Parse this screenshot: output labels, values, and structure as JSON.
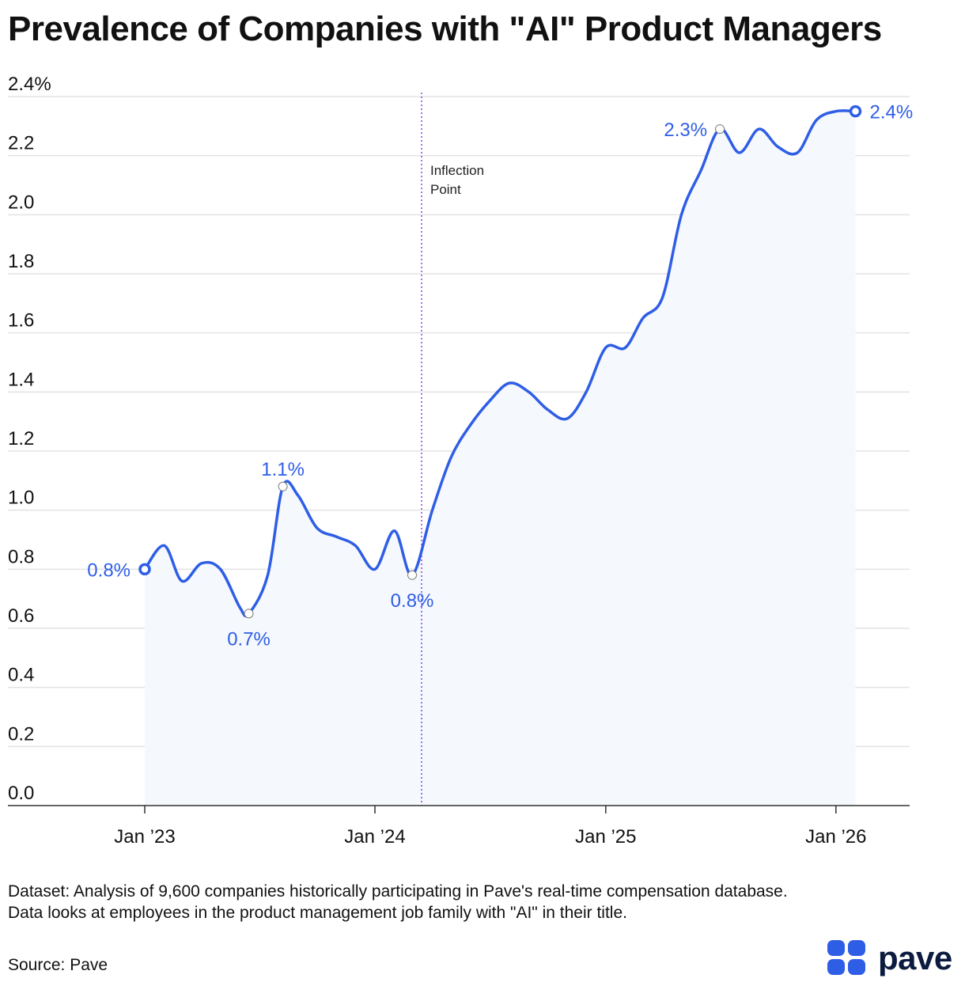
{
  "title": "Prevalence of Companies with \"AI\" Product Managers",
  "chart_data": {
    "type": "area",
    "title": "Prevalence of Companies with \"AI\" Product Managers",
    "xlabel": "",
    "ylabel": "",
    "ylim": [
      0,
      2.4
    ],
    "yticks": [
      {
        "value": 0.0,
        "label": "0.0"
      },
      {
        "value": 0.2,
        "label": "0.2"
      },
      {
        "value": 0.4,
        "label": "0.4"
      },
      {
        "value": 0.6,
        "label": "0.6"
      },
      {
        "value": 0.8,
        "label": "0.8"
      },
      {
        "value": 1.0,
        "label": "1.0"
      },
      {
        "value": 1.2,
        "label": "1.2"
      },
      {
        "value": 1.4,
        "label": "1.4"
      },
      {
        "value": 1.6,
        "label": "1.6"
      },
      {
        "value": 1.8,
        "label": "1.8"
      },
      {
        "value": 2.0,
        "label": "2.0"
      },
      {
        "value": 2.2,
        "label": "2.2"
      },
      {
        "value": 2.4,
        "label": "2.4%"
      }
    ],
    "xlim": [
      "2022-12-15",
      "2026-03-01"
    ],
    "xticks": [
      {
        "date": "2023-01-01",
        "label": "Jan ’23"
      },
      {
        "date": "2024-01-01",
        "label": "Jan ’24"
      },
      {
        "date": "2025-01-01",
        "label": "Jan ’25"
      },
      {
        "date": "2026-01-01",
        "label": "Jan ’26"
      }
    ],
    "grid": true,
    "legend": "none",
    "series": [
      {
        "color": "#2f5ee6",
        "points": [
          {
            "x": "2023-01-01",
            "y": 0.8
          },
          {
            "x": "2023-02-01",
            "y": 0.88
          },
          {
            "x": "2023-03-01",
            "y": 0.76
          },
          {
            "x": "2023-04-01",
            "y": 0.82
          },
          {
            "x": "2023-05-01",
            "y": 0.8
          },
          {
            "x": "2023-06-01",
            "y": 0.67
          },
          {
            "x": "2023-06-15",
            "y": 0.65
          },
          {
            "x": "2023-07-15",
            "y": 0.78
          },
          {
            "x": "2023-08-08",
            "y": 1.08
          },
          {
            "x": "2023-09-01",
            "y": 1.05
          },
          {
            "x": "2023-10-01",
            "y": 0.94
          },
          {
            "x": "2023-11-01",
            "y": 0.91
          },
          {
            "x": "2023-12-01",
            "y": 0.88
          },
          {
            "x": "2024-01-01",
            "y": 0.8
          },
          {
            "x": "2024-02-01",
            "y": 0.93
          },
          {
            "x": "2024-02-29",
            "y": 0.78
          },
          {
            "x": "2024-04-01",
            "y": 1.0
          },
          {
            "x": "2024-05-01",
            "y": 1.18
          },
          {
            "x": "2024-06-01",
            "y": 1.29
          },
          {
            "x": "2024-07-01",
            "y": 1.37
          },
          {
            "x": "2024-08-01",
            "y": 1.43
          },
          {
            "x": "2024-09-01",
            "y": 1.4
          },
          {
            "x": "2024-10-01",
            "y": 1.34
          },
          {
            "x": "2024-11-01",
            "y": 1.31
          },
          {
            "x": "2024-12-01",
            "y": 1.4
          },
          {
            "x": "2025-01-01",
            "y": 1.55
          },
          {
            "x": "2025-02-01",
            "y": 1.55
          },
          {
            "x": "2025-03-01",
            "y": 1.65
          },
          {
            "x": "2025-04-01",
            "y": 1.72
          },
          {
            "x": "2025-05-01",
            "y": 2.0
          },
          {
            "x": "2025-06-01",
            "y": 2.15
          },
          {
            "x": "2025-07-01",
            "y": 2.29
          },
          {
            "x": "2025-08-01",
            "y": 2.21
          },
          {
            "x": "2025-09-01",
            "y": 2.29
          },
          {
            "x": "2025-10-01",
            "y": 2.23
          },
          {
            "x": "2025-11-01",
            "y": 2.21
          },
          {
            "x": "2025-12-01",
            "y": 2.32
          },
          {
            "x": "2026-01-01",
            "y": 2.35
          },
          {
            "x": "2026-02-01",
            "y": 2.35
          }
        ]
      }
    ],
    "annotations": [
      {
        "x": "2023-01-01",
        "y": 0.8,
        "label": "0.8%",
        "marker": "endpoint",
        "position": "left"
      },
      {
        "x": "2023-06-15",
        "y": 0.65,
        "label": "0.7%",
        "marker": "hollow",
        "position": "below"
      },
      {
        "x": "2023-08-08",
        "y": 1.08,
        "label": "1.1%",
        "marker": "hollow",
        "position": "above"
      },
      {
        "x": "2024-02-29",
        "y": 0.78,
        "label": "0.8%",
        "marker": "hollow",
        "position": "below"
      },
      {
        "x": "2025-07-01",
        "y": 2.29,
        "label": "2.3%",
        "marker": "hollow",
        "position": "left"
      },
      {
        "x": "2026-02-01",
        "y": 2.35,
        "label": "2.4%",
        "marker": "endpoint",
        "position": "right"
      }
    ],
    "reference_line": {
      "x": "2024-03-15",
      "label_lines": [
        "Inflection",
        "Point"
      ],
      "color": "#8a3ff2",
      "style": "dotted"
    }
  },
  "footer": {
    "note": "Dataset: Analysis of 9,600 companies historically participating in Pave's real-time compensation database. Data looks at employees in the product management job family with \"AI\" in their title.",
    "source": "Source: Pave"
  },
  "brand": {
    "wordmark": "pave",
    "color": "#2f5ee6"
  },
  "colors": {
    "line": "#2f5ee6",
    "fill": "#f5f8fd",
    "grid": "#e3e3e3",
    "axis": "#333333"
  }
}
